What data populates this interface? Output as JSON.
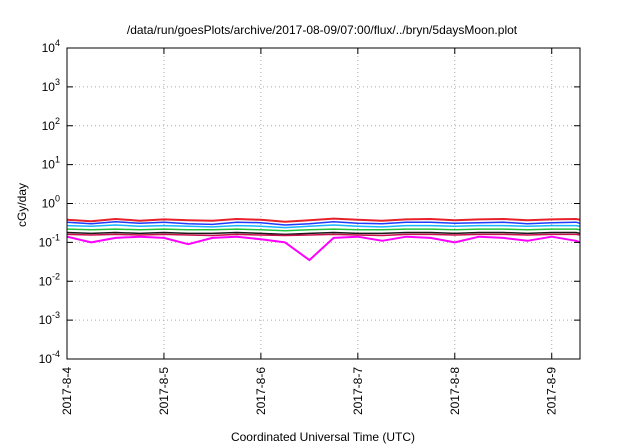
{
  "chart_data": {
    "type": "line",
    "title": "/data/run/goesPlots/archive/2017-08-09/07:00/flux/../bryn/5daysMoon.plot",
    "xlabel": "Coordinated Universal Time (UTC)",
    "ylabel": "cGy/day",
    "x_scale": "time",
    "xlim": [
      "2017-08-04T00:00",
      "2017-08-09T07:00"
    ],
    "x_ticks": [
      "2017-8-4",
      "2017-8-5",
      "2017-8-6",
      "2017-8-7",
      "2017-8-8",
      "2017-8-9"
    ],
    "x_tick_dates": [
      "2017-08-04",
      "2017-08-05",
      "2017-08-06",
      "2017-08-07",
      "2017-08-08",
      "2017-08-09"
    ],
    "y_scale": "log",
    "ylim": [
      0.0001,
      10000
    ],
    "y_ticks": [
      {
        "value": 10000,
        "base": "10",
        "exp": "4"
      },
      {
        "value": 1000,
        "base": "10",
        "exp": "3"
      },
      {
        "value": 100,
        "base": "10",
        "exp": "2"
      },
      {
        "value": 10,
        "base": "10",
        "exp": "1"
      },
      {
        "value": 1,
        "base": "10",
        "exp": "0"
      },
      {
        "value": 0.1,
        "base": "10",
        "exp": "-1"
      },
      {
        "value": 0.01,
        "base": "10",
        "exp": "-2"
      },
      {
        "value": 0.001,
        "base": "10",
        "exp": "-3"
      },
      {
        "value": 0.0001,
        "base": "10",
        "exp": "-4"
      }
    ],
    "grid": true,
    "legend": "none",
    "x": [
      "2017-08-04T00:00",
      "2017-08-04T06:00",
      "2017-08-04T12:00",
      "2017-08-04T18:00",
      "2017-08-05T00:00",
      "2017-08-05T06:00",
      "2017-08-05T12:00",
      "2017-08-05T18:00",
      "2017-08-06T00:00",
      "2017-08-06T06:00",
      "2017-08-06T12:00",
      "2017-08-06T18:00",
      "2017-08-07T00:00",
      "2017-08-07T06:00",
      "2017-08-07T12:00",
      "2017-08-07T18:00",
      "2017-08-08T00:00",
      "2017-08-08T06:00",
      "2017-08-08T12:00",
      "2017-08-08T18:00",
      "2017-08-09T00:00",
      "2017-08-09T06:00",
      "2017-08-09T07:00"
    ],
    "series": [
      {
        "color": "#e8202a",
        "values": [
          0.38,
          0.35,
          0.4,
          0.36,
          0.39,
          0.37,
          0.36,
          0.4,
          0.38,
          0.34,
          0.37,
          0.41,
          0.38,
          0.36,
          0.39,
          0.4,
          0.37,
          0.39,
          0.4,
          0.37,
          0.39,
          0.4,
          0.38
        ]
      },
      {
        "color": "#1e3cff",
        "values": [
          0.33,
          0.3,
          0.34,
          0.31,
          0.33,
          0.3,
          0.29,
          0.33,
          0.32,
          0.28,
          0.3,
          0.34,
          0.31,
          0.3,
          0.33,
          0.33,
          0.31,
          0.32,
          0.33,
          0.3,
          0.32,
          0.33,
          0.31
        ]
      },
      {
        "color": "#19b4ff",
        "values": [
          0.27,
          0.26,
          0.28,
          0.26,
          0.27,
          0.26,
          0.25,
          0.27,
          0.26,
          0.24,
          0.26,
          0.28,
          0.26,
          0.25,
          0.27,
          0.27,
          0.26,
          0.27,
          0.27,
          0.26,
          0.27,
          0.27,
          0.26
        ]
      },
      {
        "color": "#20c43c",
        "values": [
          0.22,
          0.21,
          0.22,
          0.21,
          0.22,
          0.21,
          0.21,
          0.22,
          0.21,
          0.2,
          0.21,
          0.22,
          0.21,
          0.21,
          0.22,
          0.22,
          0.21,
          0.22,
          0.22,
          0.21,
          0.22,
          0.22,
          0.21
        ]
      },
      {
        "color": "#1a1a1a",
        "values": [
          0.18,
          0.17,
          0.18,
          0.17,
          0.18,
          0.17,
          0.17,
          0.18,
          0.17,
          0.16,
          0.17,
          0.18,
          0.17,
          0.17,
          0.18,
          0.18,
          0.17,
          0.18,
          0.18,
          0.17,
          0.18,
          0.18,
          0.17
        ]
      },
      {
        "color": "#c8104a",
        "values": [
          0.16,
          0.155,
          0.16,
          0.155,
          0.16,
          0.155,
          0.15,
          0.16,
          0.155,
          0.15,
          0.155,
          0.16,
          0.155,
          0.15,
          0.16,
          0.16,
          0.155,
          0.16,
          0.16,
          0.155,
          0.16,
          0.16,
          0.155
        ]
      },
      {
        "color": "#ff00ff",
        "values": [
          0.14,
          0.1,
          0.13,
          0.14,
          0.13,
          0.09,
          0.13,
          0.14,
          0.12,
          0.1,
          0.035,
          0.13,
          0.14,
          0.11,
          0.14,
          0.13,
          0.1,
          0.14,
          0.13,
          0.11,
          0.14,
          0.11,
          0.1
        ]
      }
    ]
  }
}
